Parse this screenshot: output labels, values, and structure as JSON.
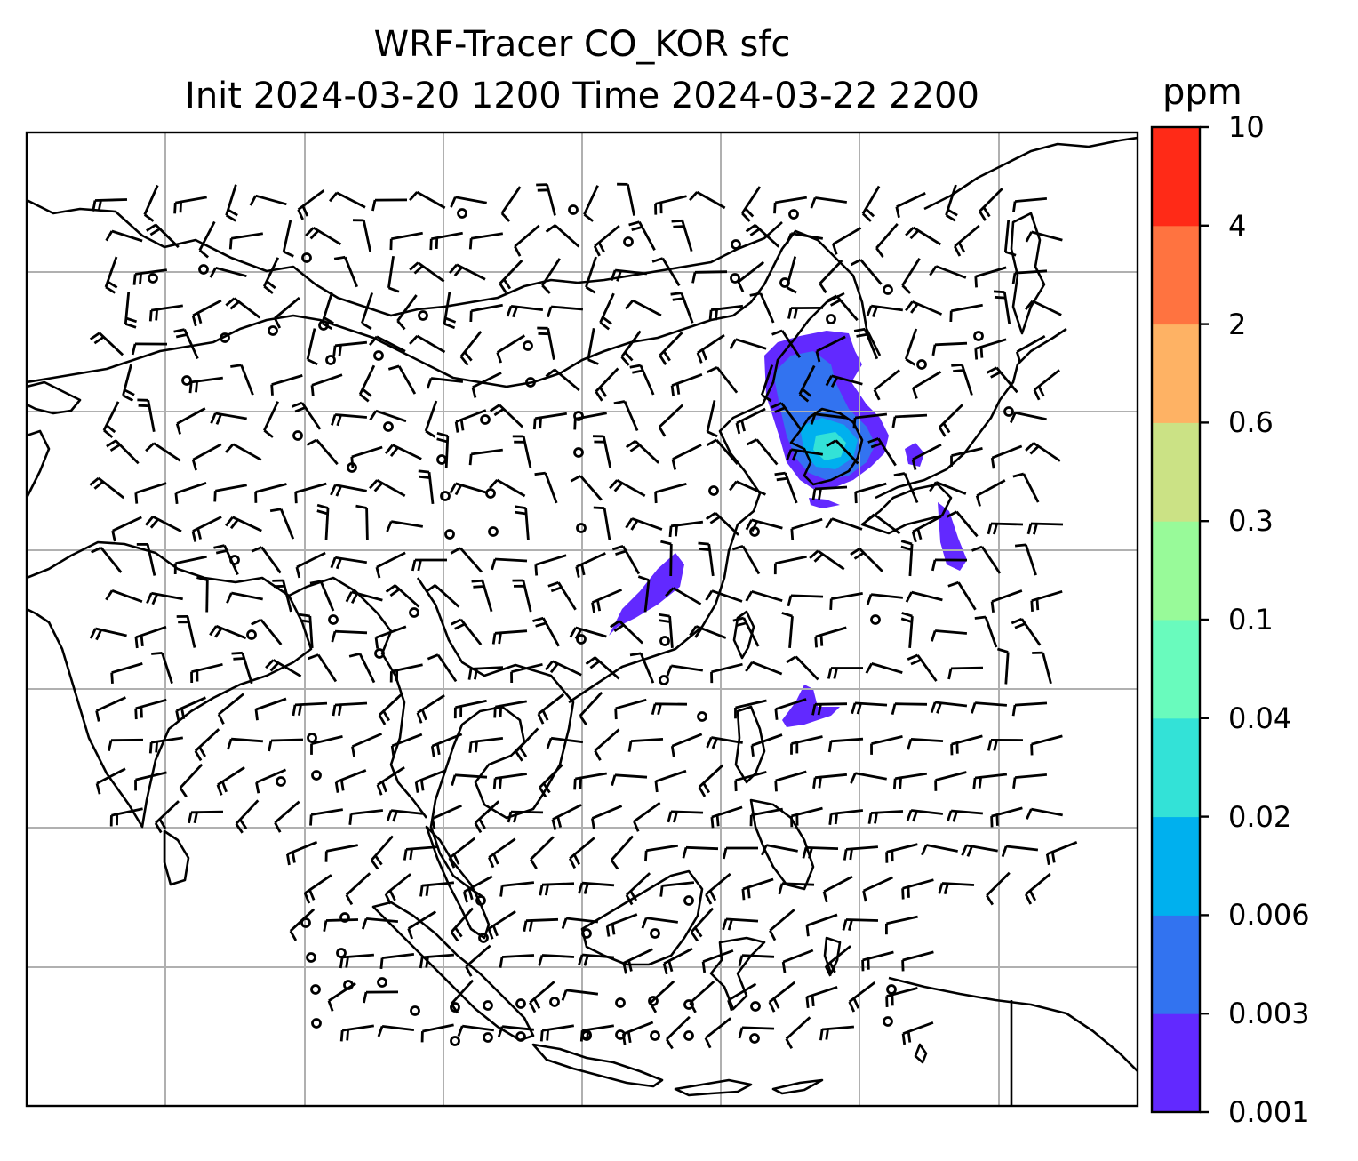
{
  "title_line1": "WRF-Tracer CO_KOR sfc",
  "title_line2": "Init 2024-03-20 1200 Time 2024-03-22 2200",
  "colorbar": {
    "units": "ppm",
    "levels": [
      "0.001",
      "0.003",
      "0.006",
      "0.02",
      "0.04",
      "0.1",
      "0.3",
      "0.6",
      "2",
      "4",
      "10"
    ],
    "colors": [
      "#6229ff",
      "#3273f0",
      "#00b0ee",
      "#33e2d7",
      "#69fbbd",
      "#98fa99",
      "#cbe285",
      "#feb264",
      "#ff7340",
      "#ff2a17"
    ]
  },
  "map": {
    "field": "CO_KOR",
    "level": "sfc",
    "gridlines": true,
    "coastline_color": "#000000",
    "gridline_color": "#b0b0b0",
    "wind_barbs": true
  }
}
